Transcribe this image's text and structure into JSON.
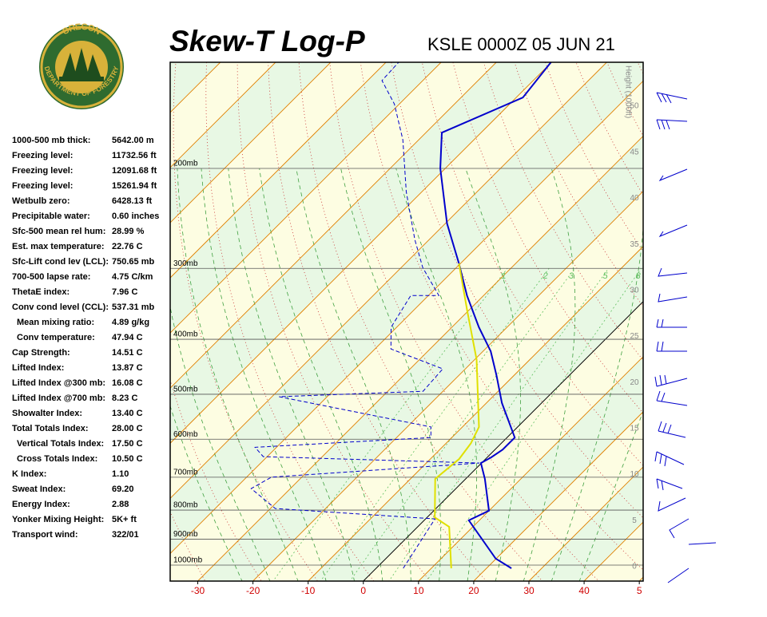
{
  "header": {
    "logo_top": "OREGON",
    "logo_bottom": "DEPARTMENT OF FORESTRY"
  },
  "indices": [
    [
      "1000-500 mb thick:",
      "5642.00 m"
    ],
    [
      "Freezing level:",
      "11732.56 ft"
    ],
    [
      "Freezing level:",
      "12091.68 ft"
    ],
    [
      "Freezing level:",
      "15261.94 ft"
    ],
    [
      "Wetbulb zero:",
      "6428.13 ft"
    ],
    [
      "Precipitable water:",
      "0.60 inches"
    ],
    [
      "Sfc-500 mean rel hum:",
      "28.99 %"
    ],
    [
      "Est. max temperature:",
      "22.76 C"
    ],
    [
      "Sfc-Lift cond lev (LCL):",
      "750.65 mb"
    ],
    [
      "700-500 lapse rate:",
      "4.75 C/km"
    ],
    [
      "ThetaE index:",
      "7.96 C"
    ],
    [
      "Conv cond level (CCL):",
      "537.31 mb"
    ],
    [
      "Mean mixing ratio:",
      "4.89 g/kg"
    ],
    [
      "Conv temperature:",
      "47.94 C"
    ],
    [
      "Cap Strength:",
      "14.51 C"
    ],
    [
      "Lifted Index:",
      "13.87 C"
    ],
    [
      "Lifted Index @300 mb:",
      "16.08 C"
    ],
    [
      "Lifted Index @700 mb:",
      "8.23 C"
    ],
    [
      "Showalter Index:",
      "13.40 C"
    ],
    [
      "Total Totals Index:",
      "28.00 C"
    ],
    [
      "Vertical Totals Index:",
      "17.50 C"
    ],
    [
      "Cross Totals Index:",
      "10.50 C"
    ],
    [
      "K Index:",
      "1.10"
    ],
    [
      "Sweat Index:",
      "69.20"
    ],
    [
      "Energy Index:",
      "2.88"
    ],
    [
      "Yonker Mixing Height:",
      "5K+ ft"
    ],
    [
      "Transport wind:",
      "322/01"
    ]
  ],
  "chart_data": {
    "type": "skewt",
    "title": "Skew-T Log-P",
    "subtitle": "KSLE 0000Z 05 JUN 21",
    "xlim": [
      -35,
      50.7
    ],
    "xticks": [
      -30,
      -20,
      -10,
      0,
      10,
      20,
      30,
      40,
      {
        "value": 50,
        "label": "5"
      }
    ],
    "ylim": [
      1067,
      130
    ],
    "y_log": true,
    "yticks": [
      {
        "value": 200,
        "label": "200mb"
      },
      {
        "value": 300,
        "label": "300mb"
      },
      {
        "value": 400,
        "label": "400mb"
      },
      {
        "value": 500,
        "label": "500mb"
      },
      {
        "value": 600,
        "label": "600mb"
      },
      {
        "value": 700,
        "label": "700mb"
      },
      {
        "value": 800,
        "label": "800mb"
      },
      {
        "value": 900,
        "label": "900mb"
      },
      {
        "value": 1000,
        "label": "1000mb"
      }
    ],
    "height_label": "Height (1000ft)",
    "height_lim": [
      -1.56,
      54.77
    ],
    "height_ticks": [
      0,
      5,
      10,
      15,
      20,
      25,
      30,
      35,
      40,
      45,
      50
    ],
    "mixing_ratio_labels": [
      1,
      2,
      3,
      5,
      8
    ],
    "series": [
      {
        "color": "#0000cc",
        "dash": false,
        "pressure": [
          1013,
          974,
          834,
          802,
          705,
          661,
          646,
          626,
          596,
          518,
          463,
          420,
          381,
          335,
          294,
          250,
          200,
          173,
          150,
          130
        ],
        "values": [
          24.5,
          19.9,
          8.1,
          10.0,
          3.5,
          -0.1,
          0.7,
          1.4,
          1.4,
          -7.2,
          -13.2,
          -18.6,
          -25.1,
          -33.0,
          -40.3,
          -49.7,
          -60.9,
          -67.1,
          -58.8,
          -60.1
        ]
      },
      {
        "color": "#0000cc",
        "dash": true,
        "pressure": [
          1013,
          829,
          795,
          733,
          700,
          661,
          644,
          620,
          596,
          571,
          505,
          494,
          451,
          416,
          381,
          335,
          335,
          299,
          267,
          220,
          178,
          154,
          140,
          130
        ],
        "values": [
          4.9,
          1.7,
          -29.1,
          -37.1,
          -35.5,
          -0.4,
          -40.7,
          -43.9,
          -13.8,
          -15.7,
          -48.7,
          -23.6,
          -24.1,
          -37.1,
          -41.0,
          -43.2,
          -38.1,
          -46.1,
          -52.6,
          -62.8,
          -72.9,
          -80.9,
          -87.4,
          -87.7
        ]
      },
      {
        "color": "#e0e000",
        "dash": false,
        "pressure": [
          1013,
          856,
          824,
          705,
          650,
          610,
          571,
          434,
          357,
          294
        ],
        "values": [
          13.6,
          5.7,
          1.4,
          -5.5,
          -4.8,
          -5.5,
          -7.0,
          -19.7,
          -30.1,
          -40.3
        ]
      }
    ]
  }
}
